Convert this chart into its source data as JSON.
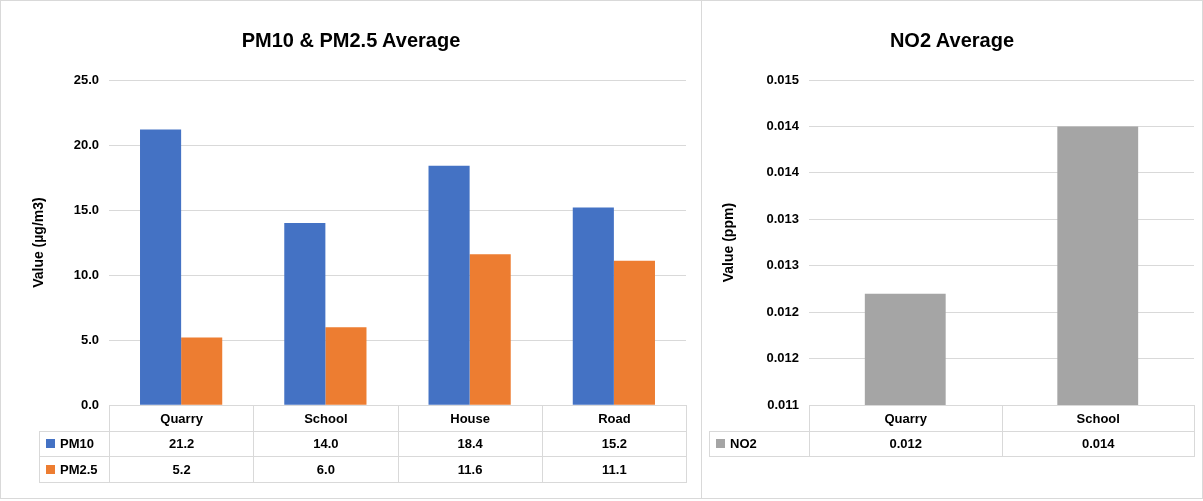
{
  "chart_data": [
    {
      "type": "bar",
      "title": "PM10 & PM2.5 Average",
      "ylabel": "Value (µg/m3)",
      "categories": [
        "Quarry",
        "School",
        "House",
        "Road"
      ],
      "series": [
        {
          "name": "PM10",
          "color": "#4472c4",
          "values": [
            21.2,
            14.0,
            18.4,
            15.2
          ],
          "value_labels": [
            "21.2",
            "14.0",
            "18.4",
            "15.2"
          ]
        },
        {
          "name": "PM2.5",
          "color": "#ed7d31",
          "values": [
            5.2,
            6.0,
            11.6,
            11.1
          ],
          "value_labels": [
            "5.2",
            "6.0",
            "11.6",
            "11.1"
          ]
        }
      ],
      "ylim": [
        0,
        25
      ],
      "yticks": [
        {
          "value": 0,
          "label": "0.0"
        },
        {
          "value": 5,
          "label": "5.0"
        },
        {
          "value": 10,
          "label": "10.0"
        },
        {
          "value": 15,
          "label": "15.0"
        },
        {
          "value": 20,
          "label": "20.0"
        },
        {
          "value": 25,
          "label": "25.0"
        }
      ],
      "grid": "y",
      "legend": "bottom"
    },
    {
      "type": "bar",
      "title": "NO2 Average",
      "ylabel": "Value (ppm)",
      "categories": [
        "Quarry",
        "School"
      ],
      "series": [
        {
          "name": "NO2",
          "color": "#a5a5a5",
          "values": [
            0.0122,
            0.014
          ],
          "value_labels": [
            "0.012",
            "0.014"
          ]
        }
      ],
      "ylim": [
        0.011,
        0.0145
      ],
      "yticks": [
        {
          "value": 0.011,
          "label": "0.011"
        },
        {
          "value": 0.0115,
          "label": "0.012"
        },
        {
          "value": 0.012,
          "label": "0.012"
        },
        {
          "value": 0.0125,
          "label": "0.013"
        },
        {
          "value": 0.013,
          "label": "0.013"
        },
        {
          "value": 0.0135,
          "label": "0.014"
        },
        {
          "value": 0.014,
          "label": "0.014"
        },
        {
          "value": 0.0145,
          "label": "0.015"
        }
      ],
      "grid": "y",
      "legend": "bottom"
    }
  ]
}
